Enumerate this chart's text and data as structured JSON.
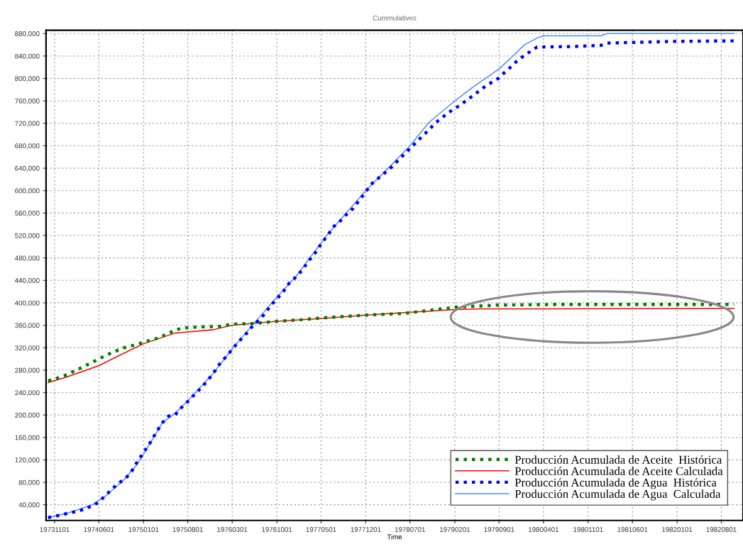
{
  "chart_data": {
    "type": "line",
    "title": "Cummulatives",
    "xlabel": "Time",
    "xlim": [
      "1973-09-21",
      "1982-11-13"
    ],
    "xticks": [
      {
        "value": "1973-11-01",
        "label": "19731101"
      },
      {
        "value": "1974-06-01",
        "label": "19740601"
      },
      {
        "value": "1975-01-01",
        "label": "19750101"
      },
      {
        "value": "1975-08-01",
        "label": "19750801"
      },
      {
        "value": "1976-03-01",
        "label": "19760301"
      },
      {
        "value": "1976-10-01",
        "label": "19761001"
      },
      {
        "value": "1977-05-01",
        "label": "19770501"
      },
      {
        "value": "1977-12-01",
        "label": "19771201"
      },
      {
        "value": "1978-07-01",
        "label": "19780701"
      },
      {
        "value": "1979-02-01",
        "label": "19790201"
      },
      {
        "value": "1979-09-01",
        "label": "19790901"
      },
      {
        "value": "1980-04-01",
        "label": "19800401"
      },
      {
        "value": "1980-11-01",
        "label": "19801101"
      },
      {
        "value": "1981-06-01",
        "label": "19810601"
      },
      {
        "value": "1982-01-01",
        "label": "19820101"
      },
      {
        "value": "1982-08-01",
        "label": "19820801"
      }
    ],
    "ylim": [
      12000,
      886000
    ],
    "yticks": [
      {
        "value": 40000,
        "label": "40,000"
      },
      {
        "value": 80000,
        "label": "80,000"
      },
      {
        "value": 120000,
        "label": "120,000"
      },
      {
        "value": 160000,
        "label": "160,000"
      },
      {
        "value": 200000,
        "label": "200,000"
      },
      {
        "value": 240000,
        "label": "240,000"
      },
      {
        "value": 280000,
        "label": "280,000"
      },
      {
        "value": 320000,
        "label": "320,000"
      },
      {
        "value": 360000,
        "label": "360,000"
      },
      {
        "value": 400000,
        "label": "400,000"
      },
      {
        "value": 440000,
        "label": "440,000"
      },
      {
        "value": 480000,
        "label": "480,000"
      },
      {
        "value": 520000,
        "label": "520,000"
      },
      {
        "value": 560000,
        "label": "560,000"
      },
      {
        "value": 600000,
        "label": "600,000"
      },
      {
        "value": 640000,
        "label": "640,000"
      },
      {
        "value": 680000,
        "label": "680,000"
      },
      {
        "value": 720000,
        "label": "720,000"
      },
      {
        "value": 760000,
        "label": "760,000"
      },
      {
        "value": 800000,
        "label": "800,000"
      },
      {
        "value": 840000,
        "label": "840,000"
      },
      {
        "value": 880000,
        "label": "880,000"
      }
    ],
    "grid": true,
    "legend": "bottom right",
    "series": [
      {
        "name": "Producción Acumulada de Aceite  Histórica",
        "color": "#008000",
        "line_style": "dotted",
        "x": [
          "1973-10",
          "1973-11",
          "1974-01",
          "1974-03",
          "1974-05",
          "1974-06",
          "1974-08",
          "1974-10",
          "1974-12",
          "1975-01",
          "1975-03",
          "1975-05",
          "1975-06",
          "1975-08",
          "1975-10",
          "1976-01",
          "1976-03",
          "1976-06",
          "1976-10",
          "1977-02",
          "1977-05",
          "1977-12",
          "1978-06",
          "1979-02",
          "1979-09",
          "1980-06",
          "1981-06",
          "1982-10"
        ],
        "values": [
          261000,
          264000,
          272000,
          283000,
          294000,
          300000,
          311000,
          320000,
          326000,
          330000,
          336000,
          345000,
          352000,
          356000,
          357000,
          358000,
          362000,
          363000,
          367000,
          370000,
          373000,
          378000,
          381000,
          392000,
          396000,
          397000,
          397000,
          397000
        ]
      },
      {
        "name": "Producción Acumulada de Aceite Calculada",
        "color": "#ff0000",
        "line_style": "solid",
        "x": [
          "1973-10",
          "1974-01",
          "1974-06",
          "1974-09",
          "1975-01",
          "1975-06",
          "1975-08",
          "1975-12",
          "1976-03",
          "1976-10",
          "1977-05",
          "1977-12",
          "1978-07",
          "1979-02",
          "1979-06",
          "1982-10"
        ],
        "values": [
          258000,
          268000,
          288000,
          305000,
          327000,
          346000,
          348000,
          352000,
          360000,
          367000,
          372000,
          378000,
          383000,
          388000,
          389000,
          390000
        ]
      },
      {
        "name": "Producción Acumulada de Agua  Histórica",
        "color": "#0000ff",
        "line_style": "dotted",
        "x": [
          "1973-10",
          "1973-11",
          "1973-12",
          "1974-01",
          "1974-02",
          "1974-03",
          "1974-04",
          "1974-05",
          "1974-06",
          "1974-07",
          "1974-08",
          "1974-09",
          "1974-10",
          "1974-11",
          "1974-12",
          "1975-01",
          "1975-02",
          "1975-03",
          "1975-04",
          "1975-05",
          "1975-06",
          "1975-07",
          "1975-08",
          "1975-09",
          "1975-10",
          "1975-11",
          "1975-12",
          "1976-01",
          "1976-02",
          "1976-03",
          "1976-04",
          "1976-05",
          "1976-06",
          "1976-08",
          "1976-09",
          "1976-10",
          "1976-11",
          "1976-12",
          "1977-01",
          "1977-02",
          "1977-03",
          "1977-04",
          "1977-05",
          "1977-06",
          "1977-07",
          "1977-08",
          "1977-09",
          "1977-10",
          "1977-11",
          "1977-12",
          "1978-01",
          "1978-04",
          "1978-07",
          "1978-10",
          "1978-11",
          "1979-01",
          "1979-03",
          "1979-05",
          "1979-07",
          "1979-09",
          "1979-10",
          "1979-11",
          "1979-12",
          "1980-02",
          "1980-03",
          "1980-09",
          "1981-01",
          "1981-02",
          "1981-12",
          "1982-10"
        ],
        "values": [
          17000,
          20000,
          21000,
          25000,
          27000,
          29000,
          34000,
          38000,
          45000,
          56000,
          67000,
          78000,
          85000,
          97000,
          116000,
          133000,
          150000,
          168000,
          186000,
          198000,
          200000,
          213000,
          224000,
          236000,
          247000,
          260000,
          274000,
          291000,
          304000,
          317000,
          331000,
          342000,
          356000,
          379000,
          395000,
          407000,
          420000,
          436000,
          446000,
          459000,
          474000,
          488000,
          505000,
          520000,
          536000,
          546000,
          558000,
          568000,
          583000,
          598000,
          613000,
          641000,
          675000,
          709000,
          721000,
          739000,
          753000,
          770000,
          787000,
          801000,
          812000,
          822000,
          833000,
          849000,
          856000,
          857000,
          859000,
          863000,
          866000,
          867000
        ]
      },
      {
        "name": "Producción Acumulada de Agua  Calculada",
        "color": "#4a8cff",
        "line_style": "solid",
        "x": [
          "1973-10",
          "1974-01",
          "1974-05",
          "1974-07",
          "1974-10",
          "1974-12",
          "1975-01",
          "1975-04",
          "1975-06",
          "1975-08",
          "1975-12",
          "1976-03",
          "1976-06",
          "1976-10",
          "1977-01",
          "1977-06",
          "1977-12",
          "1978-04",
          "1978-07",
          "1978-10",
          "1979-02",
          "1979-05",
          "1979-09",
          "1979-11",
          "1980-01",
          "1980-03",
          "1980-04",
          "1981-01",
          "1981-02",
          "1982-10"
        ],
        "values": [
          17000,
          25000,
          40000,
          55000,
          85000,
          112000,
          130000,
          186000,
          203000,
          225000,
          274000,
          318000,
          358000,
          410000,
          447000,
          522000,
          600000,
          645000,
          680000,
          722000,
          760000,
          785000,
          817000,
          838000,
          860000,
          872000,
          876000,
          876000,
          880000,
          880000
        ]
      }
    ]
  }
}
